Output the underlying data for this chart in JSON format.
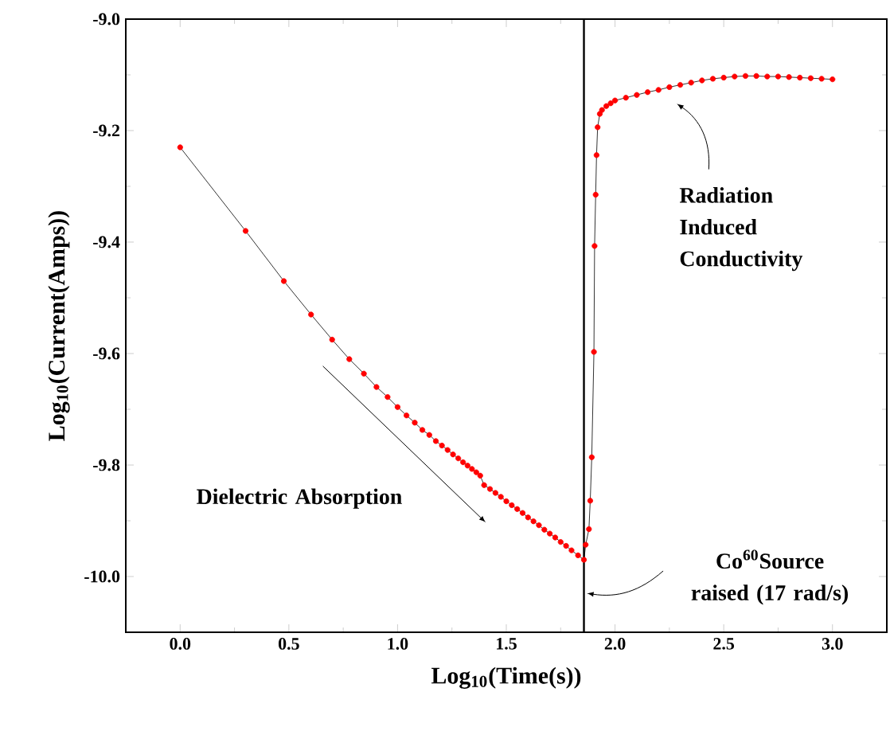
{
  "chart_data": {
    "type": "line",
    "xlabel": "Log$_{10}$(Time(s))",
    "ylabel": "Log$_{10}$(Current(Amps))",
    "xlim": [
      -0.25,
      3.25
    ],
    "ylim": [
      -10.1,
      -9.0
    ],
    "xticks": [
      {
        "value": 0,
        "label": "0.0"
      },
      {
        "value": 0.5,
        "label": "0.5"
      },
      {
        "value": 1,
        "label": "1.0"
      },
      {
        "value": 1.5,
        "label": "1.5"
      },
      {
        "value": 2,
        "label": "2.0"
      },
      {
        "value": 2.5,
        "label": "2.5"
      },
      {
        "value": 3,
        "label": "3.0"
      }
    ],
    "yticks": [
      {
        "value": -10,
        "label": "-10.0"
      },
      {
        "value": -9.8,
        "label": "-9.8"
      },
      {
        "value": -9.6,
        "label": "-9.6"
      },
      {
        "value": -9.4,
        "label": "-9.4"
      },
      {
        "value": -9.2,
        "label": "-9.2"
      },
      {
        "value": -9,
        "label": "-9.0"
      }
    ],
    "marker": "circle",
    "grid": false,
    "series": [
      {
        "color": "#ff0000",
        "x": [
          0,
          0.301,
          0.477,
          0.602,
          0.699,
          0.778,
          0.845,
          0.903,
          0.954,
          1.0,
          1.041,
          1.079,
          1.114,
          1.146,
          1.176,
          1.204,
          1.23,
          1.255,
          1.279,
          1.301,
          1.322,
          1.342,
          1.362,
          1.38,
          1.398,
          1.425,
          1.45,
          1.475,
          1.5,
          1.525,
          1.55,
          1.575,
          1.6,
          1.625,
          1.65,
          1.675,
          1.7,
          1.725,
          1.75,
          1.775,
          1.8,
          1.83,
          1.857,
          1.865,
          1.88,
          1.886,
          1.893,
          1.903,
          1.906,
          1.911,
          1.915,
          1.92,
          1.93,
          1.94,
          1.96,
          1.98,
          2.0,
          2.05,
          2.1,
          2.15,
          2.2,
          2.25,
          2.3,
          2.35,
          2.4,
          2.45,
          2.5,
          2.55,
          2.6,
          2.65,
          2.7,
          2.75,
          2.8,
          2.85,
          2.9,
          2.95,
          3.0
        ],
        "values": [
          -9.23,
          -9.38,
          -9.47,
          -9.53,
          -9.575,
          -9.61,
          -9.636,
          -9.66,
          -9.678,
          -9.696,
          -9.711,
          -9.724,
          -9.737,
          -9.746,
          -9.757,
          -9.765,
          -9.773,
          -9.781,
          -9.788,
          -9.795,
          -9.801,
          -9.807,
          -9.813,
          -9.819,
          -9.836,
          -9.843,
          -9.85,
          -9.857,
          -9.865,
          -9.872,
          -9.879,
          -9.886,
          -9.894,
          -9.901,
          -9.908,
          -9.916,
          -9.923,
          -9.93,
          -9.938,
          -9.945,
          -9.953,
          -9.962,
          -9.97,
          -9.943,
          -9.915,
          -9.864,
          -9.786,
          -9.597,
          -9.407,
          -9.315,
          -9.244,
          -9.194,
          -9.17,
          -9.163,
          -9.156,
          -9.151,
          -9.146,
          -9.141,
          -9.136,
          -9.131,
          -9.127,
          -9.122,
          -9.118,
          -9.114,
          -9.11,
          -9.107,
          -9.105,
          -9.103,
          -9.102,
          -9.102,
          -9.103,
          -9.103,
          -9.104,
          -9.105,
          -9.106,
          -9.107,
          -9.108
        ]
      }
    ],
    "ref_lines": [
      {
        "axis": "x",
        "value": 1.857,
        "color": "#000000",
        "line_style": "solid"
      }
    ],
    "annotations": [
      "Dielectric Absorption",
      "Radiation Induced Conductivity",
      {
        "text": "Co$^{60}$Source raised (17 rad/s)",
        "x": 1.87,
        "y": -10.03
      }
    ]
  }
}
